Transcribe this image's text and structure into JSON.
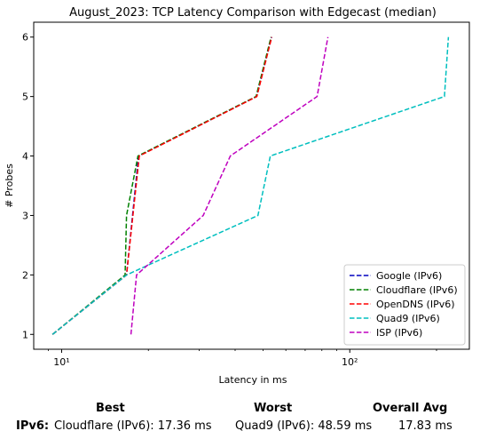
{
  "chart_data": {
    "type": "line",
    "title": "August_2023: TCP Latency Comparison with Edgecast (median)",
    "xlabel": "Latency in ms",
    "ylabel": "# Probes",
    "xscale": "log",
    "xlim": [
      8,
      260
    ],
    "ylim": [
      0.75,
      6.25
    ],
    "xticks": [
      10,
      100
    ],
    "xtick_labels": [
      "10¹",
      "10²"
    ],
    "yticks": [
      1,
      2,
      3,
      4,
      5,
      6
    ],
    "legend_position": "lower right",
    "series": [
      {
        "name": "Google (IPv6)",
        "color": "#0000bf",
        "x": [
          9.3,
          16.8,
          18.5,
          47.5,
          53.5
        ],
        "y": [
          1,
          2,
          4,
          5,
          6
        ]
      },
      {
        "name": "Cloudflare (IPv6)",
        "color": "#008000",
        "x": [
          9.3,
          16.6,
          16.8,
          18.4,
          47.3,
          53.3
        ],
        "y": [
          1,
          2,
          3,
          4,
          5,
          6
        ]
      },
      {
        "name": "OpenDNS (IPv6)",
        "color": "#ff0000",
        "x": [
          9.3,
          16.8,
          18.6,
          47.6,
          53.6
        ],
        "y": [
          1,
          2,
          4,
          5,
          6
        ]
      },
      {
        "name": "Quad9 (IPv6)",
        "color": "#00bfbf",
        "x": [
          9.3,
          16.8,
          48.0,
          53.0,
          213.0,
          220.0
        ],
        "y": [
          1,
          2,
          3,
          4,
          5,
          6
        ]
      },
      {
        "name": "ISP (IPv6)",
        "color": "#bf00bf",
        "x": [
          17.4,
          18.2,
          31.0,
          38.5,
          77.0,
          84.0
        ],
        "y": [
          1,
          2,
          3,
          4,
          5,
          6
        ]
      }
    ]
  },
  "summary": {
    "best_heading": "Best",
    "worst_heading": "Worst",
    "avg_heading": "Overall Avg",
    "row_label": "IPv6:",
    "best": "Cloudflare (IPv6): 17.36 ms",
    "worst": "Quad9 (IPv6): 48.59 ms",
    "avg": "17.83 ms"
  }
}
